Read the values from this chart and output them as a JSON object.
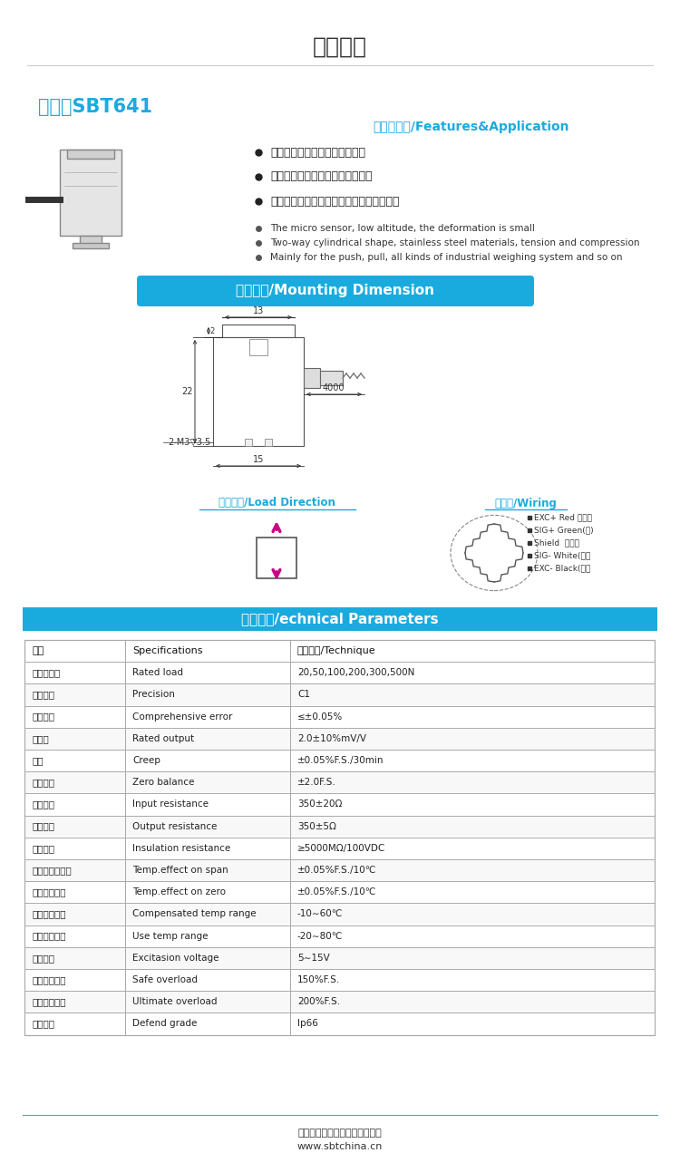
{
  "title": "产品参数",
  "model_label": "型号：SBT641",
  "features_title": "特点与用途/Features&Application",
  "features_cn": [
    "微型传感器，高度低，变形量小",
    "圆柱外形，不锈钢材料，拉压双向",
    "主要用于推、拉力计，各种工业称重系统等"
  ],
  "features_en": [
    "The micro sensor, low altitude, the deformation is small",
    "Two-way cylindrical shape, stainless steel materials, tension and compression",
    "Mainly for the push, pull, all kinds of industrial weighing system and so on"
  ],
  "mounting_title": "安装尺寸/Mounting Dimension",
  "load_direction_title": "受力方式/Load Direction",
  "wiring_title": "接线图/Wiring",
  "tech_title": "技术参数/echnical Parameters",
  "table_headers": [
    "参数",
    "Specifications",
    "技术指标/Technique"
  ],
  "table_rows": [
    [
      "传感器量程",
      "Rated load",
      "20,50,100,200,300,500N"
    ],
    [
      "精度等级",
      "Precision",
      "C1"
    ],
    [
      "综合误差",
      "Comprehensive error",
      "≤±0.05%"
    ],
    [
      "灵敏度",
      "Rated output",
      "2.0±10%mV/V"
    ],
    [
      "蠕变",
      "Creep",
      "±0.05%F.S./30min"
    ],
    [
      "零点输出",
      "Zero balance",
      "±2.0F.S."
    ],
    [
      "输入阻抗",
      "Input resistance",
      "350±20Ω"
    ],
    [
      "输出阻抗",
      "Output resistance",
      "350±5Ω"
    ],
    [
      "绝缘电阻",
      "Insulation resistance",
      "≥5000MΩ/100VDC"
    ],
    [
      "灵敏度温度影响",
      "Temp.effect on span",
      "±0.05%F.S./10℃"
    ],
    [
      "零点温度影响",
      "Temp.effect on zero",
      "±0.05%F.S./10℃"
    ],
    [
      "温度补偿范围",
      "Compensated temp range",
      "-10∼60℃"
    ],
    [
      "使用温度范围",
      "Use temp range",
      "-20∼80℃"
    ],
    [
      "激励电压",
      "Excitasion voltage",
      "5∼15V"
    ],
    [
      "安全过载范围",
      "Safe overload",
      "150%F.S."
    ],
    [
      "极限过载范围",
      "Ultimate overload",
      "200%F.S."
    ],
    [
      "防护等级",
      "Defend grade",
      "Ip66"
    ]
  ],
  "footer_line1": "广州市斯巴拓电子科技有限公司",
  "footer_line2": "www.sbtchina.cn",
  "blue_color": "#1AABDE",
  "wiring_labels": [
    "EXC+ Red （红）",
    "SIG+ Green(绿)",
    "Shield  屏蔽线",
    "SIG- White(白）",
    "EXC- Black(黑）"
  ]
}
